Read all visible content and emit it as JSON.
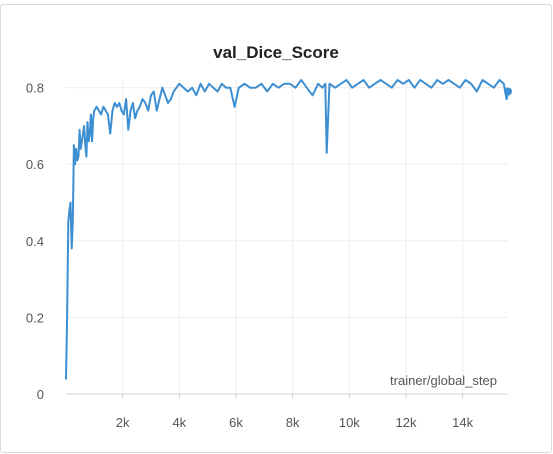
{
  "chart_data": {
    "type": "line",
    "title": "val_Dice_Score",
    "xlabel": "trainer/global_step",
    "ylabel": "",
    "xlim": [
      0,
      15600
    ],
    "ylim": [
      0,
      0.82
    ],
    "grid": true,
    "color": "#3d8fd1",
    "x_ticks": [
      {
        "value": 2000,
        "label": "2k"
      },
      {
        "value": 4000,
        "label": "4k"
      },
      {
        "value": 6000,
        "label": "6k"
      },
      {
        "value": 8000,
        "label": "8k"
      },
      {
        "value": 10000,
        "label": "10k"
      },
      {
        "value": 12000,
        "label": "12k"
      },
      {
        "value": 14000,
        "label": "14k"
      }
    ],
    "y_ticks": [
      {
        "value": 0,
        "label": "0"
      },
      {
        "value": 0.2,
        "label": "0.2"
      },
      {
        "value": 0.4,
        "label": "0.4"
      },
      {
        "value": 0.6,
        "label": "0.6"
      },
      {
        "value": 0.8,
        "label": "0.8"
      }
    ],
    "series": [
      {
        "x": [
          0,
          40,
          80,
          120,
          160,
          200,
          240,
          280,
          320,
          360,
          400,
          440,
          480,
          520,
          560,
          600,
          640,
          680,
          720,
          760,
          800,
          840,
          880,
          920,
          960,
          1000,
          1080,
          1160,
          1240,
          1320,
          1400,
          1480,
          1560,
          1640,
          1720,
          1800,
          1880,
          1960,
          2040,
          2120,
          2200,
          2280,
          2360,
          2440,
          2520,
          2600,
          2700,
          2800,
          2900,
          3000,
          3100,
          3200,
          3300,
          3400,
          3500,
          3600,
          3700,
          3800,
          3900,
          4000,
          4150,
          4300,
          4450,
          4600,
          4750,
          4900,
          5050,
          5200,
          5350,
          5500,
          5650,
          5800,
          5950,
          6100,
          6300,
          6500,
          6700,
          6900,
          7100,
          7300,
          7500,
          7700,
          7900,
          8100,
          8300,
          8500,
          8700,
          8900,
          9050,
          9150,
          9200,
          9300,
          9500,
          9700,
          9900,
          10100,
          10300,
          10500,
          10700,
          10900,
          11100,
          11300,
          11500,
          11700,
          11900,
          12100,
          12300,
          12500,
          12700,
          12900,
          13100,
          13300,
          13500,
          13700,
          13900,
          14100,
          14300,
          14500,
          14700,
          14900,
          15100,
          15300,
          15450,
          15550,
          15600
        ],
        "y": [
          0.04,
          0.2,
          0.45,
          0.48,
          0.5,
          0.38,
          0.45,
          0.65,
          0.6,
          0.64,
          0.61,
          0.62,
          0.69,
          0.64,
          0.66,
          0.68,
          0.7,
          0.65,
          0.62,
          0.71,
          0.66,
          0.68,
          0.73,
          0.66,
          0.72,
          0.74,
          0.75,
          0.74,
          0.73,
          0.75,
          0.74,
          0.73,
          0.68,
          0.74,
          0.76,
          0.75,
          0.76,
          0.74,
          0.73,
          0.77,
          0.69,
          0.74,
          0.76,
          0.72,
          0.74,
          0.75,
          0.77,
          0.76,
          0.74,
          0.78,
          0.79,
          0.74,
          0.77,
          0.8,
          0.78,
          0.76,
          0.77,
          0.79,
          0.8,
          0.81,
          0.8,
          0.79,
          0.8,
          0.78,
          0.81,
          0.79,
          0.81,
          0.8,
          0.79,
          0.81,
          0.8,
          0.8,
          0.75,
          0.8,
          0.81,
          0.8,
          0.8,
          0.81,
          0.79,
          0.81,
          0.8,
          0.81,
          0.81,
          0.8,
          0.82,
          0.8,
          0.78,
          0.81,
          0.8,
          0.81,
          0.63,
          0.81,
          0.8,
          0.81,
          0.82,
          0.8,
          0.81,
          0.82,
          0.8,
          0.81,
          0.82,
          0.81,
          0.8,
          0.82,
          0.81,
          0.82,
          0.8,
          0.82,
          0.81,
          0.8,
          0.82,
          0.81,
          0.82,
          0.81,
          0.8,
          0.82,
          0.81,
          0.79,
          0.82,
          0.81,
          0.8,
          0.82,
          0.81,
          0.77,
          0.79
        ]
      }
    ]
  }
}
